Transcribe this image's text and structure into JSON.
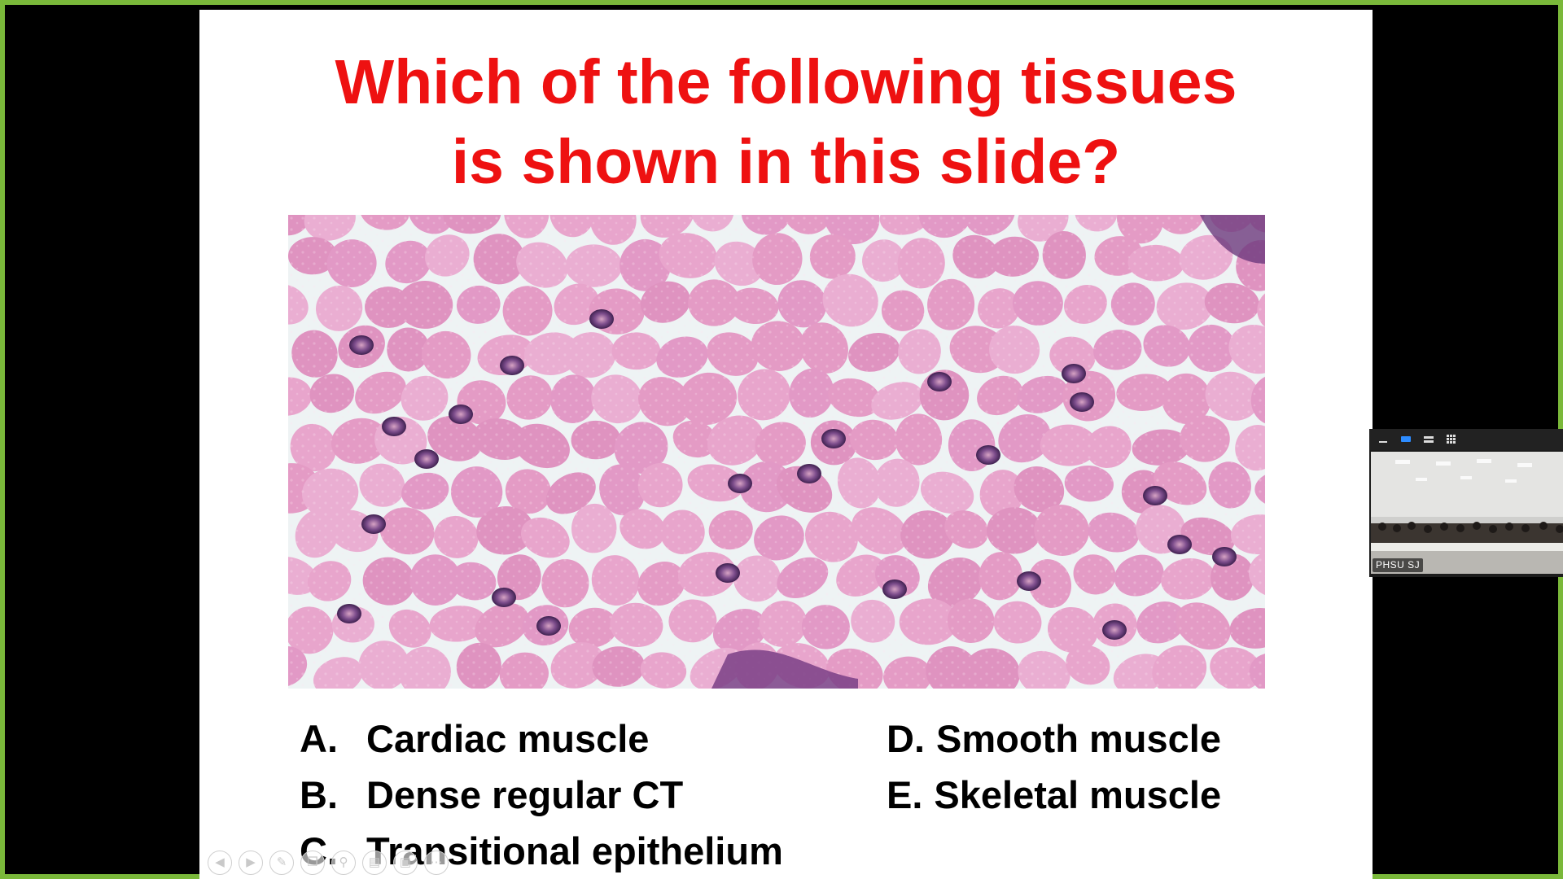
{
  "slide": {
    "question_lines": [
      "Which of the following tissues",
      "is shown in this slide?"
    ],
    "question_color": "#ee1111",
    "image": "histology-micrograph",
    "choices": [
      {
        "letter": "A.",
        "text": "Cardiac muscle"
      },
      {
        "letter": "B.",
        "text": "Dense regular CT"
      },
      {
        "letter": "C.",
        "text": "Transitional epithelium"
      },
      {
        "letter": "D.",
        "text": "Smooth muscle"
      },
      {
        "letter": "E.",
        "text": "Skeletal muscle"
      }
    ]
  },
  "presentation_controls": [
    "previous-icon",
    "next-icon",
    "pen-icon",
    "copy-icon",
    "zoom-icon",
    "subtitles-icon",
    "camera-icon",
    "more-icon"
  ],
  "video_panel": {
    "participant_name": "PHSU SJ",
    "toolbar_icons": [
      "minimize-icon",
      "single-view-icon",
      "split-view-icon",
      "grid-view-icon"
    ],
    "active_color": "#2d8cff"
  },
  "frame_color": "#7ab83a"
}
